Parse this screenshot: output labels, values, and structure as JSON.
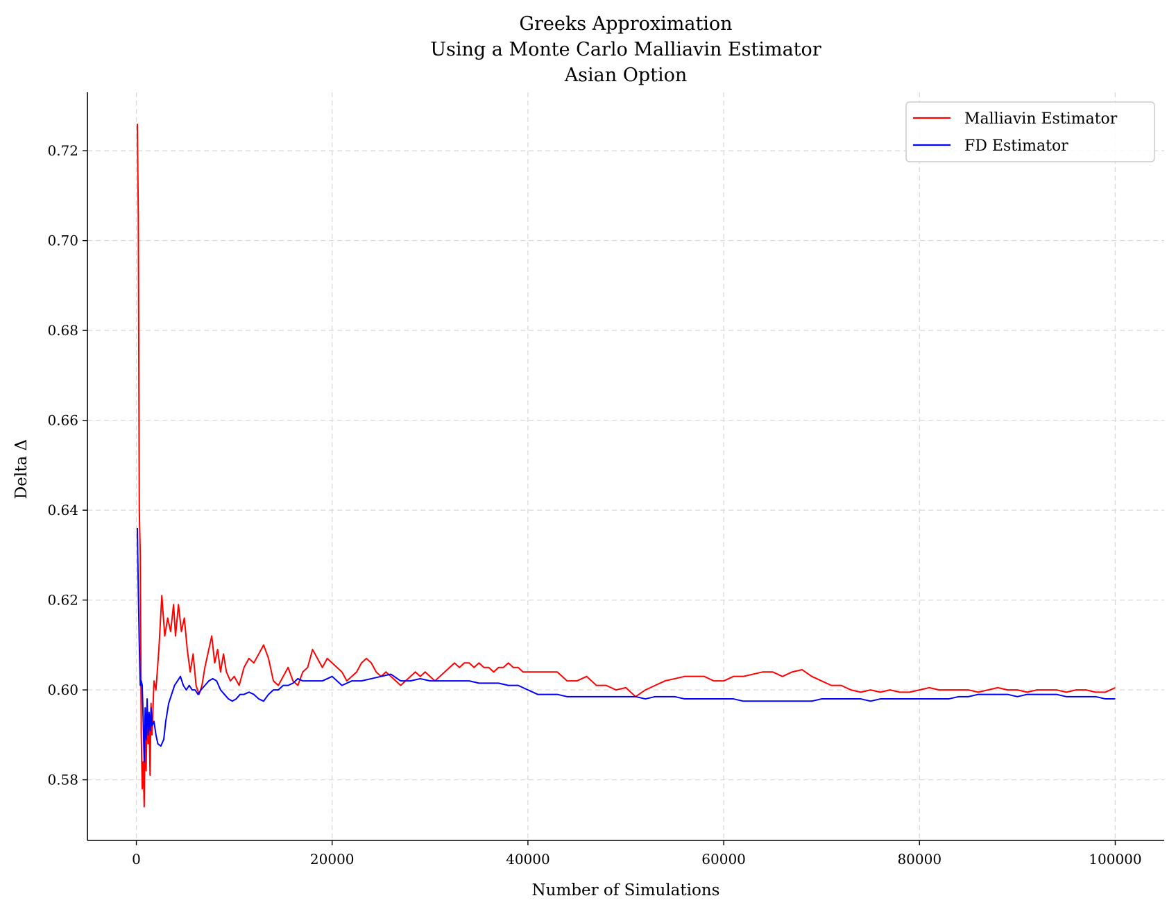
{
  "chart_data": {
    "type": "line",
    "title_lines": [
      "Greeks Approximation",
      "Using a Monte Carlo Malliavin Estimator",
      "Asian Option"
    ],
    "xlabel": "Number of Simulations",
    "ylabel": "Delta Δ",
    "xlim": [
      -5000,
      105000
    ],
    "ylim": [
      0.5665,
      0.733
    ],
    "x_ticks": [
      0,
      20000,
      40000,
      60000,
      80000,
      100000
    ],
    "x_tick_labels": [
      "0",
      "20000",
      "40000",
      "60000",
      "80000",
      "100000"
    ],
    "y_ticks": [
      0.58,
      0.6,
      0.62,
      0.64,
      0.66,
      0.68,
      0.7,
      0.72
    ],
    "y_tick_labels": [
      "0.58",
      "0.60",
      "0.62",
      "0.64",
      "0.66",
      "0.68",
      "0.70",
      "0.72"
    ],
    "grid": true,
    "legend_position": "top-right",
    "series": [
      {
        "name": "Malliavin Estimator",
        "color": "#ff0000",
        "points": [
          [
            100,
            0.726
          ],
          [
            200,
            0.705
          ],
          [
            300,
            0.64
          ],
          [
            400,
            0.63
          ],
          [
            500,
            0.59
          ],
          [
            600,
            0.578
          ],
          [
            700,
            0.584
          ],
          [
            800,
            0.574
          ],
          [
            900,
            0.592
          ],
          [
            1000,
            0.582
          ],
          [
            1100,
            0.596
          ],
          [
            1200,
            0.588
          ],
          [
            1300,
            0.594
          ],
          [
            1400,
            0.581
          ],
          [
            1500,
            0.597
          ],
          [
            1600,
            0.59
          ],
          [
            1800,
            0.602
          ],
          [
            2000,
            0.6
          ],
          [
            2300,
            0.609
          ],
          [
            2600,
            0.621
          ],
          [
            2900,
            0.612
          ],
          [
            3200,
            0.616
          ],
          [
            3500,
            0.613
          ],
          [
            3800,
            0.619
          ],
          [
            4000,
            0.612
          ],
          [
            4300,
            0.619
          ],
          [
            4600,
            0.613
          ],
          [
            4900,
            0.616
          ],
          [
            5200,
            0.609
          ],
          [
            5500,
            0.604
          ],
          [
            5800,
            0.608
          ],
          [
            6100,
            0.601
          ],
          [
            6400,
            0.599
          ],
          [
            6700,
            0.601
          ],
          [
            7000,
            0.605
          ],
          [
            7300,
            0.608
          ],
          [
            7700,
            0.612
          ],
          [
            8000,
            0.606
          ],
          [
            8300,
            0.609
          ],
          [
            8600,
            0.604
          ],
          [
            8900,
            0.608
          ],
          [
            9200,
            0.604
          ],
          [
            9600,
            0.602
          ],
          [
            10000,
            0.603
          ],
          [
            10500,
            0.601
          ],
          [
            11000,
            0.605
          ],
          [
            11500,
            0.607
          ],
          [
            12000,
            0.606
          ],
          [
            12500,
            0.608
          ],
          [
            13000,
            0.61
          ],
          [
            13500,
            0.607
          ],
          [
            14000,
            0.602
          ],
          [
            14500,
            0.601
          ],
          [
            15000,
            0.603
          ],
          [
            15500,
            0.605
          ],
          [
            16000,
            0.602
          ],
          [
            16500,
            0.601
          ],
          [
            17000,
            0.604
          ],
          [
            17500,
            0.605
          ],
          [
            18000,
            0.609
          ],
          [
            18500,
            0.607
          ],
          [
            19000,
            0.605
          ],
          [
            19500,
            0.607
          ],
          [
            20000,
            0.606
          ],
          [
            20500,
            0.605
          ],
          [
            21000,
            0.604
          ],
          [
            21500,
            0.602
          ],
          [
            22000,
            0.603
          ],
          [
            22500,
            0.604
          ],
          [
            23000,
            0.606
          ],
          [
            23500,
            0.607
          ],
          [
            24000,
            0.606
          ],
          [
            24500,
            0.604
          ],
          [
            25000,
            0.603
          ],
          [
            25500,
            0.604
          ],
          [
            26000,
            0.603
          ],
          [
            26500,
            0.602
          ],
          [
            27000,
            0.601
          ],
          [
            27500,
            0.602
          ],
          [
            28000,
            0.603
          ],
          [
            28500,
            0.604
          ],
          [
            29000,
            0.603
          ],
          [
            29500,
            0.604
          ],
          [
            30000,
            0.603
          ],
          [
            30500,
            0.602
          ],
          [
            31000,
            0.603
          ],
          [
            31500,
            0.604
          ],
          [
            32000,
            0.605
          ],
          [
            32500,
            0.606
          ],
          [
            33000,
            0.605
          ],
          [
            33500,
            0.606
          ],
          [
            34000,
            0.606
          ],
          [
            34500,
            0.605
          ],
          [
            35000,
            0.606
          ],
          [
            35500,
            0.605
          ],
          [
            36000,
            0.605
          ],
          [
            36500,
            0.604
          ],
          [
            37000,
            0.605
          ],
          [
            37500,
            0.605
          ],
          [
            38000,
            0.606
          ],
          [
            38500,
            0.605
          ],
          [
            39000,
            0.605
          ],
          [
            39500,
            0.604
          ],
          [
            40000,
            0.604
          ],
          [
            41000,
            0.604
          ],
          [
            42000,
            0.604
          ],
          [
            43000,
            0.604
          ],
          [
            44000,
            0.602
          ],
          [
            45000,
            0.602
          ],
          [
            46000,
            0.603
          ],
          [
            47000,
            0.601
          ],
          [
            48000,
            0.601
          ],
          [
            49000,
            0.6
          ],
          [
            50000,
            0.6005
          ],
          [
            51000,
            0.5985
          ],
          [
            52000,
            0.6
          ],
          [
            53000,
            0.601
          ],
          [
            54000,
            0.602
          ],
          [
            55000,
            0.6025
          ],
          [
            56000,
            0.603
          ],
          [
            57000,
            0.603
          ],
          [
            58000,
            0.603
          ],
          [
            59000,
            0.602
          ],
          [
            60000,
            0.602
          ],
          [
            61000,
            0.603
          ],
          [
            62000,
            0.603
          ],
          [
            63000,
            0.6035
          ],
          [
            64000,
            0.604
          ],
          [
            65000,
            0.604
          ],
          [
            66000,
            0.603
          ],
          [
            67000,
            0.604
          ],
          [
            68000,
            0.6045
          ],
          [
            69000,
            0.603
          ],
          [
            70000,
            0.602
          ],
          [
            71000,
            0.601
          ],
          [
            72000,
            0.601
          ],
          [
            73000,
            0.6
          ],
          [
            74000,
            0.5995
          ],
          [
            75000,
            0.6
          ],
          [
            76000,
            0.5995
          ],
          [
            77000,
            0.6
          ],
          [
            78000,
            0.5995
          ],
          [
            79000,
            0.5995
          ],
          [
            80000,
            0.6
          ],
          [
            81000,
            0.6005
          ],
          [
            82000,
            0.6
          ],
          [
            83000,
            0.6
          ],
          [
            84000,
            0.6
          ],
          [
            85000,
            0.6
          ],
          [
            86000,
            0.5995
          ],
          [
            87000,
            0.6
          ],
          [
            88000,
            0.6005
          ],
          [
            89000,
            0.6
          ],
          [
            90000,
            0.6
          ],
          [
            91000,
            0.5995
          ],
          [
            92000,
            0.6
          ],
          [
            93000,
            0.6
          ],
          [
            94000,
            0.6
          ],
          [
            95000,
            0.5995
          ],
          [
            96000,
            0.6
          ],
          [
            97000,
            0.6
          ],
          [
            98000,
            0.5995
          ],
          [
            99000,
            0.5995
          ],
          [
            100000,
            0.6005
          ]
        ]
      },
      {
        "name": "FD Estimator",
        "color": "#0000ff",
        "points": [
          [
            100,
            0.636
          ],
          [
            200,
            0.622
          ],
          [
            300,
            0.61
          ],
          [
            400,
            0.601
          ],
          [
            500,
            0.602
          ],
          [
            600,
            0.601
          ],
          [
            700,
            0.593
          ],
          [
            800,
            0.584
          ],
          [
            900,
            0.596
          ],
          [
            1000,
            0.589
          ],
          [
            1100,
            0.598
          ],
          [
            1200,
            0.59
          ],
          [
            1300,
            0.595
          ],
          [
            1400,
            0.591
          ],
          [
            1500,
            0.596
          ],
          [
            1600,
            0.592
          ],
          [
            1800,
            0.593
          ],
          [
            2000,
            0.59
          ],
          [
            2200,
            0.588
          ],
          [
            2500,
            0.5875
          ],
          [
            2800,
            0.589
          ],
          [
            3000,
            0.593
          ],
          [
            3300,
            0.597
          ],
          [
            3600,
            0.599
          ],
          [
            3900,
            0.601
          ],
          [
            4200,
            0.602
          ],
          [
            4500,
            0.603
          ],
          [
            4800,
            0.601
          ],
          [
            5100,
            0.6
          ],
          [
            5400,
            0.601
          ],
          [
            5700,
            0.6
          ],
          [
            6000,
            0.6
          ],
          [
            6300,
            0.599
          ],
          [
            6600,
            0.6
          ],
          [
            7000,
            0.601
          ],
          [
            7400,
            0.602
          ],
          [
            7800,
            0.6025
          ],
          [
            8200,
            0.602
          ],
          [
            8600,
            0.6
          ],
          [
            9000,
            0.599
          ],
          [
            9400,
            0.598
          ],
          [
            9800,
            0.5975
          ],
          [
            10200,
            0.598
          ],
          [
            10600,
            0.599
          ],
          [
            11000,
            0.599
          ],
          [
            11500,
            0.5995
          ],
          [
            12000,
            0.599
          ],
          [
            12500,
            0.598
          ],
          [
            13000,
            0.5975
          ],
          [
            13500,
            0.599
          ],
          [
            14000,
            0.6
          ],
          [
            14500,
            0.6
          ],
          [
            15000,
            0.601
          ],
          [
            15500,
            0.601
          ],
          [
            16000,
            0.6015
          ],
          [
            16500,
            0.6025
          ],
          [
            17000,
            0.602
          ],
          [
            17500,
            0.602
          ],
          [
            18000,
            0.602
          ],
          [
            19000,
            0.602
          ],
          [
            20000,
            0.603
          ],
          [
            21000,
            0.601
          ],
          [
            22000,
            0.602
          ],
          [
            23000,
            0.602
          ],
          [
            24000,
            0.6025
          ],
          [
            25000,
            0.603
          ],
          [
            26000,
            0.6035
          ],
          [
            27000,
            0.602
          ],
          [
            28000,
            0.602
          ],
          [
            29000,
            0.6025
          ],
          [
            30000,
            0.602
          ],
          [
            31000,
            0.602
          ],
          [
            32000,
            0.602
          ],
          [
            33000,
            0.602
          ],
          [
            34000,
            0.602
          ],
          [
            35000,
            0.6015
          ],
          [
            36000,
            0.6015
          ],
          [
            37000,
            0.6015
          ],
          [
            38000,
            0.601
          ],
          [
            39000,
            0.601
          ],
          [
            40000,
            0.6
          ],
          [
            41000,
            0.599
          ],
          [
            42000,
            0.599
          ],
          [
            43000,
            0.599
          ],
          [
            44000,
            0.5985
          ],
          [
            45000,
            0.5985
          ],
          [
            46000,
            0.5985
          ],
          [
            47000,
            0.5985
          ],
          [
            48000,
            0.5985
          ],
          [
            49000,
            0.5985
          ],
          [
            50000,
            0.5985
          ],
          [
            51000,
            0.5985
          ],
          [
            52000,
            0.598
          ],
          [
            53000,
            0.5985
          ],
          [
            54000,
            0.5985
          ],
          [
            55000,
            0.5985
          ],
          [
            56000,
            0.598
          ],
          [
            57000,
            0.598
          ],
          [
            58000,
            0.598
          ],
          [
            59000,
            0.598
          ],
          [
            60000,
            0.598
          ],
          [
            61000,
            0.598
          ],
          [
            62000,
            0.5975
          ],
          [
            63000,
            0.5975
          ],
          [
            64000,
            0.5975
          ],
          [
            65000,
            0.5975
          ],
          [
            66000,
            0.5975
          ],
          [
            67000,
            0.5975
          ],
          [
            68000,
            0.5975
          ],
          [
            69000,
            0.5975
          ],
          [
            70000,
            0.598
          ],
          [
            71000,
            0.598
          ],
          [
            72000,
            0.598
          ],
          [
            73000,
            0.598
          ],
          [
            74000,
            0.598
          ],
          [
            75000,
            0.5975
          ],
          [
            76000,
            0.598
          ],
          [
            77000,
            0.598
          ],
          [
            78000,
            0.598
          ],
          [
            79000,
            0.598
          ],
          [
            80000,
            0.598
          ],
          [
            81000,
            0.598
          ],
          [
            82000,
            0.598
          ],
          [
            83000,
            0.598
          ],
          [
            84000,
            0.5985
          ],
          [
            85000,
            0.5985
          ],
          [
            86000,
            0.599
          ],
          [
            87000,
            0.599
          ],
          [
            88000,
            0.599
          ],
          [
            89000,
            0.599
          ],
          [
            90000,
            0.5985
          ],
          [
            91000,
            0.599
          ],
          [
            92000,
            0.599
          ],
          [
            93000,
            0.599
          ],
          [
            94000,
            0.599
          ],
          [
            95000,
            0.5985
          ],
          [
            96000,
            0.5985
          ],
          [
            97000,
            0.5985
          ],
          [
            98000,
            0.5985
          ],
          [
            99000,
            0.598
          ],
          [
            100000,
            0.598
          ]
        ]
      }
    ]
  }
}
